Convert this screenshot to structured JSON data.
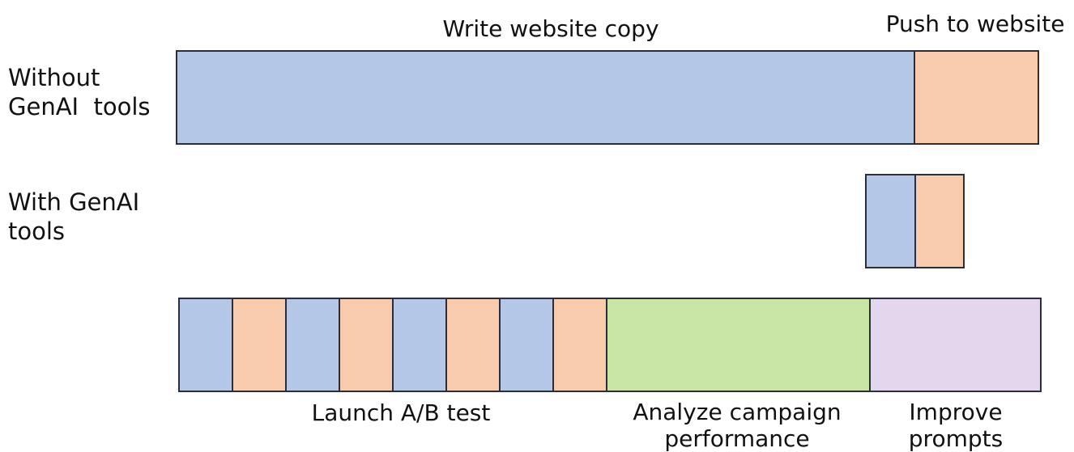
{
  "labels": {
    "write_copy": "Write website copy",
    "push": "Push to website",
    "without": [
      "Without",
      "GenAI  tools"
    ],
    "with": [
      "With GenAI",
      "tools"
    ],
    "launch_ab": "Launch A/B test",
    "analyze": [
      "Analyze campaign",
      "performance"
    ],
    "improve": [
      "Improve",
      "prompts"
    ]
  },
  "colors": {
    "write": "#b4c7e7",
    "push": "#f8cbad",
    "analyze": "#c9e5a5",
    "improve": "#e3d7ed",
    "border": "#2b2d3a"
  },
  "rows": {
    "without": [
      "write",
      "push"
    ],
    "with": [
      "write",
      "push"
    ],
    "workflow": [
      "write",
      "push",
      "write",
      "push",
      "write",
      "push",
      "write",
      "push",
      "analyze",
      "improve"
    ]
  }
}
